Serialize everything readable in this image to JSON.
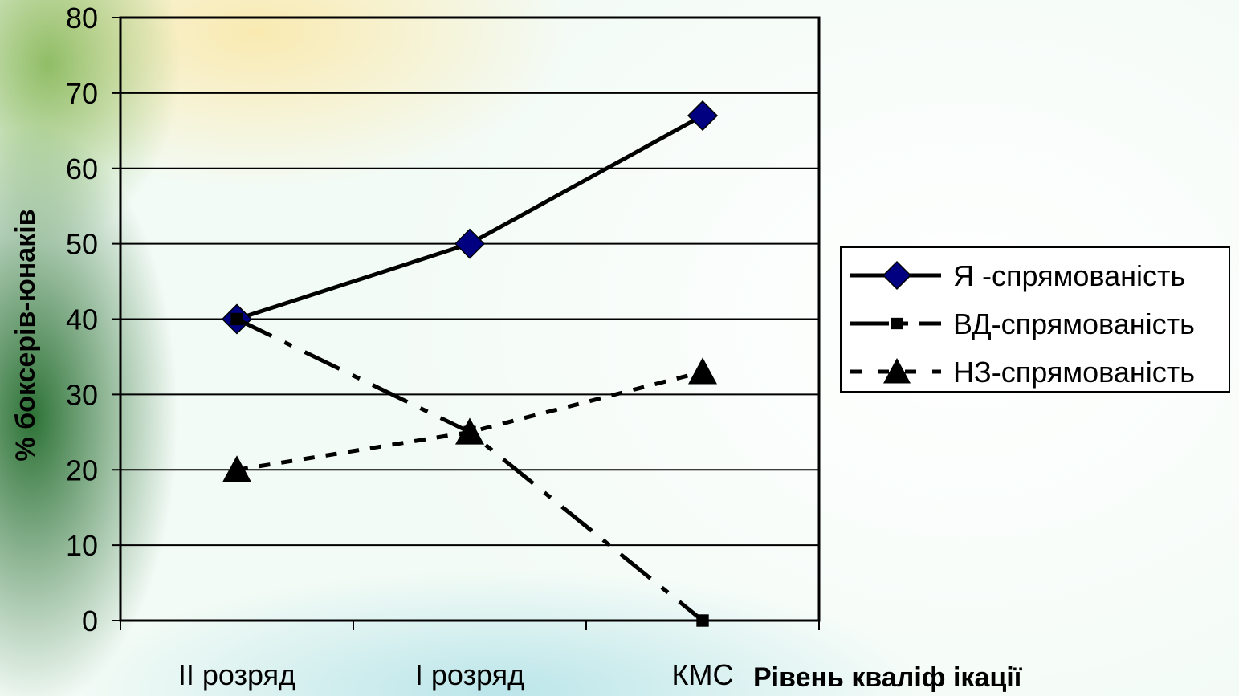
{
  "chart_data": {
    "type": "line",
    "categories": [
      "II розряд",
      "I розряд",
      "КМС"
    ],
    "series": [
      {
        "name": "Я -спрямованість",
        "values": [
          40,
          50,
          67
        ],
        "marker": "diamond",
        "color": "#000080",
        "line": "solid"
      },
      {
        "name": "ВД-спрямованість",
        "values": [
          40,
          25,
          0
        ],
        "marker": "square",
        "color": "#000000",
        "line": "dash-dot"
      },
      {
        "name": "НЗ-спрямованість",
        "values": [
          20,
          25,
          33
        ],
        "marker": "triangle",
        "color": "#000000",
        "line": "dotted"
      }
    ],
    "xlabel": "Рівень кваліф ікації",
    "ylabel": "% боксерів-юнаків",
    "ylim": [
      0,
      80
    ],
    "yticks": [
      0,
      10,
      20,
      30,
      40,
      50,
      60,
      70,
      80
    ],
    "grid": true,
    "legend_position": "right"
  }
}
